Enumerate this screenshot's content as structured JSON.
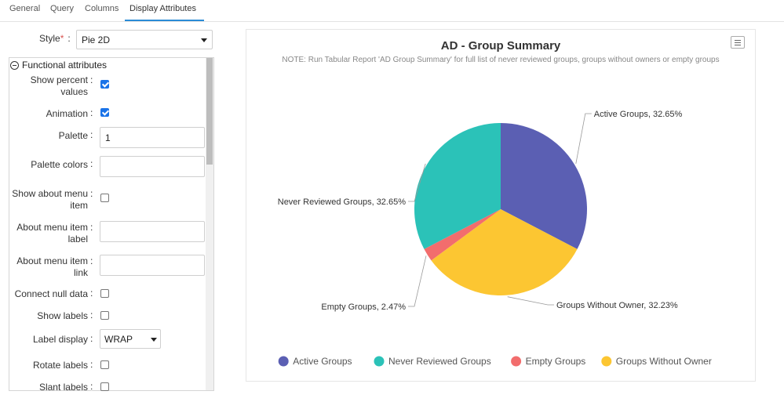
{
  "tabs": [
    {
      "label": "General",
      "active": false
    },
    {
      "label": "Query",
      "active": false
    },
    {
      "label": "Columns",
      "active": false
    },
    {
      "label": "Display Attributes",
      "active": true
    }
  ],
  "style_field": {
    "label": "Style",
    "required_mark": "*",
    "colon": ":",
    "value": "Pie 2D"
  },
  "attributes": {
    "group_title": "Functional attributes",
    "colon": ":",
    "show_percent": {
      "label_line1": "Show percent",
      "label_line2": "values",
      "checked": true
    },
    "animation": {
      "label": "Animation",
      "checked": true
    },
    "palette": {
      "label": "Palette",
      "value": "1"
    },
    "palette_colors": {
      "label": "Palette colors",
      "value": ""
    },
    "show_about_menu_item": {
      "label_line1": "Show about menu",
      "label_line2": "item",
      "checked": false
    },
    "about_menu_item_label": {
      "label_line1": "About menu item",
      "label_line2": "label",
      "value": ""
    },
    "about_menu_item_link": {
      "label_line1": "About menu item",
      "label_line2": "link",
      "value": ""
    },
    "connect_null_data": {
      "label": "Connect null data",
      "checked": false
    },
    "show_labels": {
      "label": "Show labels",
      "checked": false
    },
    "label_display": {
      "label": "Label display",
      "value": "WRAP"
    },
    "rotate_labels": {
      "label": "Rotate labels",
      "checked": false
    },
    "slant_labels": {
      "label": "Slant labels",
      "checked": false
    }
  },
  "chart_menu_icon": "hamburger-menu-icon",
  "chart_data": {
    "type": "pie",
    "title": "AD - Group Summary",
    "subtitle": "NOTE: Run Tabular Report 'AD Group Summary' for full list of never reviewed groups, groups without owners or empty groups",
    "legend_position": "bottom",
    "slices": [
      {
        "name": "Active Groups",
        "value": 32.65,
        "label": "Active Groups, 32.65%",
        "color": "#5b5fb3"
      },
      {
        "name": "Groups Without Owner",
        "value": 32.23,
        "label": "Groups Without Owner, 32.23%",
        "color": "#fcc632"
      },
      {
        "name": "Empty Groups",
        "value": 2.47,
        "label": "Empty Groups, 2.47%",
        "color": "#f26d6d"
      },
      {
        "name": "Never Reviewed Groups",
        "value": 32.65,
        "label": "Never Reviewed Groups, 32.65%",
        "color": "#2bc2b8"
      }
    ],
    "legend": [
      {
        "name": "Active Groups",
        "color": "#5b5fb3"
      },
      {
        "name": "Never Reviewed Groups",
        "color": "#2bc2b8"
      },
      {
        "name": "Empty Groups",
        "color": "#f26d6d"
      },
      {
        "name": "Groups Without Owner",
        "color": "#fcc632"
      }
    ]
  }
}
